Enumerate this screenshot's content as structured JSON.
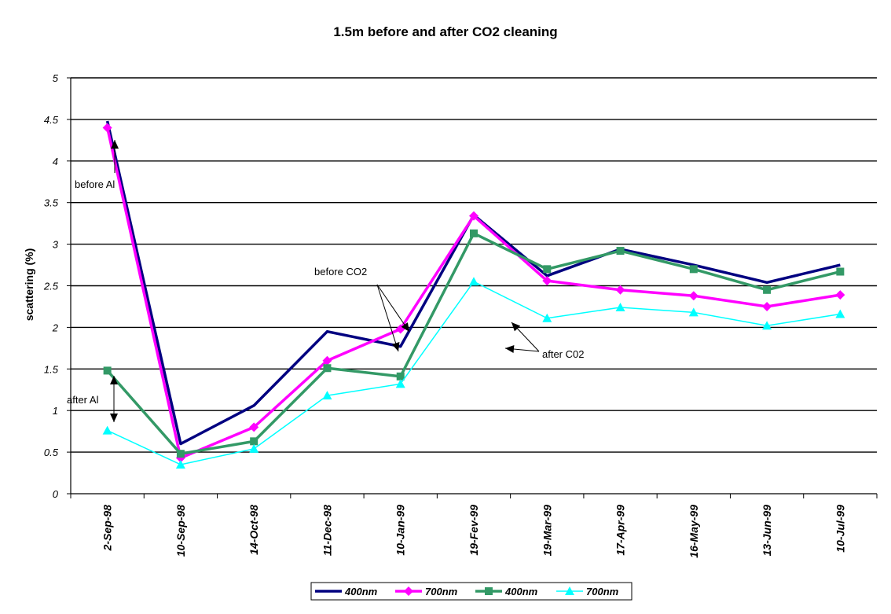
{
  "chart_data": {
    "type": "line",
    "title": "1.5m before and after CO2 cleaning",
    "xlabel": "",
    "ylabel": "scattering (%)",
    "ylim": [
      0,
      5
    ],
    "yticks": [
      0,
      0.5,
      1,
      1.5,
      2,
      2.5,
      3,
      3.5,
      4,
      4.5,
      5
    ],
    "ytick_labels": [
      "0",
      "0.5",
      "1",
      "1.5",
      "2",
      "2.5",
      "3",
      "3.5",
      "4",
      "4.5",
      "5"
    ],
    "categories": [
      "2-Sep-98",
      "10-Sep-98",
      "14-Oct-98",
      "11-Dec-98",
      "10-Jan-99",
      "19-Fev-99",
      "19-Mar-99",
      "17-Apr-99",
      "16-May-99",
      "13-Jun-99",
      "10-Jul-99"
    ],
    "grid": "horizontal",
    "legend_position": "bottom",
    "series": [
      {
        "name": "400nm",
        "color": "#000080",
        "marker": "none",
        "values": [
          4.48,
          0.6,
          1.06,
          1.95,
          1.77,
          3.35,
          2.62,
          2.94,
          2.75,
          2.54,
          2.75
        ]
      },
      {
        "name": "700nm",
        "color": "#FF00FF",
        "marker": "diamond",
        "values": [
          4.4,
          0.43,
          0.8,
          1.6,
          1.98,
          3.34,
          2.56,
          2.45,
          2.38,
          2.25,
          2.39
        ]
      },
      {
        "name": "400nm",
        "color": "#339966",
        "marker": "square",
        "values": [
          1.48,
          0.48,
          0.63,
          1.51,
          1.41,
          3.13,
          2.7,
          2.92,
          2.7,
          2.45,
          2.67
        ]
      },
      {
        "name": "700nm",
        "color": "#00FFFF",
        "marker": "triangle",
        "values": [
          0.76,
          0.35,
          0.54,
          1.18,
          1.32,
          2.55,
          2.11,
          2.24,
          2.18,
          2.02,
          2.16
        ]
      }
    ],
    "annotations": [
      {
        "text": "before Al"
      },
      {
        "text": "after Al"
      },
      {
        "text": "before CO2"
      },
      {
        "text": "after C02"
      }
    ]
  }
}
